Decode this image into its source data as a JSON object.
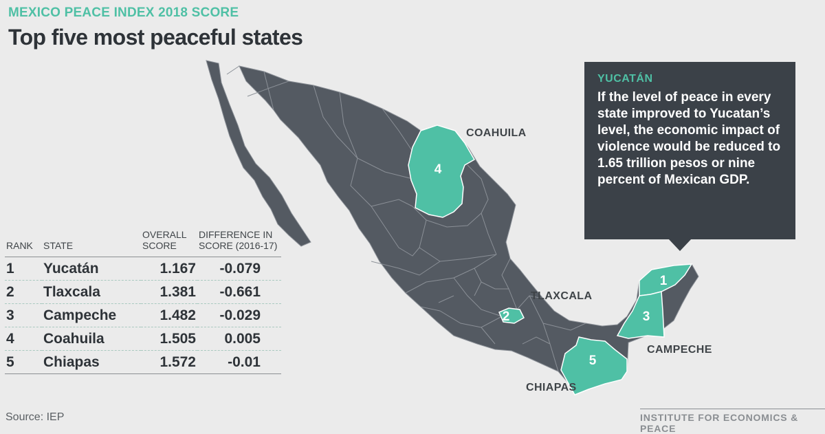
{
  "header": {
    "kicker": "MEXICO PEACE INDEX 2018 SCORE",
    "title": "Top five most peaceful states"
  },
  "colors": {
    "land": "#545a62",
    "border": "#8b9097",
    "highlight": "#4fc0a5",
    "background": "#ebebeb",
    "callout_bg": "#3b4148"
  },
  "map": {
    "labels": {
      "coahuila": "COAHUILA",
      "tlaxcala": "TLAXCALA",
      "campeche": "CAMPECHE",
      "chiapas": "CHIAPAS"
    },
    "markers": {
      "yucatan": "1",
      "tlaxcala": "2",
      "campeche": "3",
      "coahuila": "4",
      "chiapas": "5"
    }
  },
  "callout": {
    "title": "YUCATÁN",
    "text": "If the level of peace in every state improved to Yucatan’s level, the economic impact of violence would be reduced to 1.65 trillion pesos or nine percent of Mexican GDP."
  },
  "table": {
    "headers": {
      "rank": "RANK",
      "state": "STATE",
      "score": "OVERALL SCORE",
      "diff": "DIFFERENCE IN SCORE (2016-17)"
    },
    "rows": [
      {
        "rank": "1",
        "state": "Yucatán",
        "score": "1.167",
        "diff": "-0.079"
      },
      {
        "rank": "2",
        "state": "Tlaxcala",
        "score": "1.381",
        "diff": "-0.661"
      },
      {
        "rank": "3",
        "state": "Campeche",
        "score": "1.482",
        "diff": "-0.029"
      },
      {
        "rank": "4",
        "state": "Coahuila",
        "score": "1.505",
        "diff": "0.005"
      },
      {
        "rank": "5",
        "state": "Chiapas",
        "score": "1.572",
        "diff": "-0.01"
      }
    ]
  },
  "footer": {
    "source": "Source: IEP",
    "logo": "INSTITUTE FOR ECONOMICS & PEACE"
  }
}
